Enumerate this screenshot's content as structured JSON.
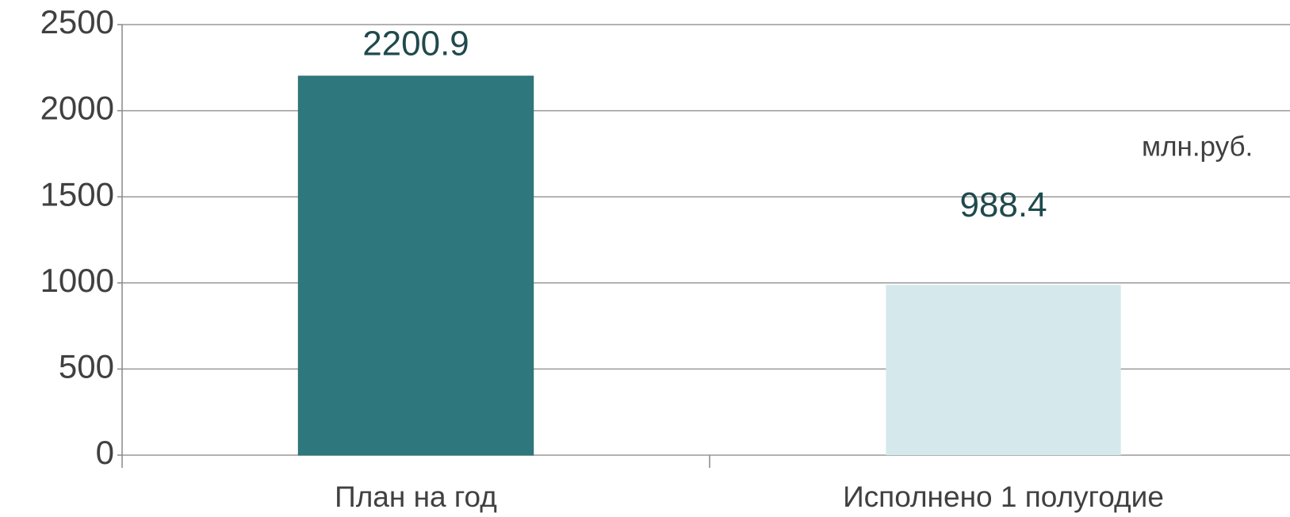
{
  "chart_data": {
    "type": "bar",
    "categories": [
      "План на год",
      "Исполнено 1 полугодие"
    ],
    "values": [
      2200.9,
      988.4
    ],
    "colors": [
      "#2e787d",
      "#d5e9ec"
    ],
    "annotation": "млн.руб.",
    "ylim": [
      0,
      2500
    ],
    "yticks": [
      0,
      500,
      1000,
      1500,
      2000,
      2500
    ],
    "grid": true
  }
}
